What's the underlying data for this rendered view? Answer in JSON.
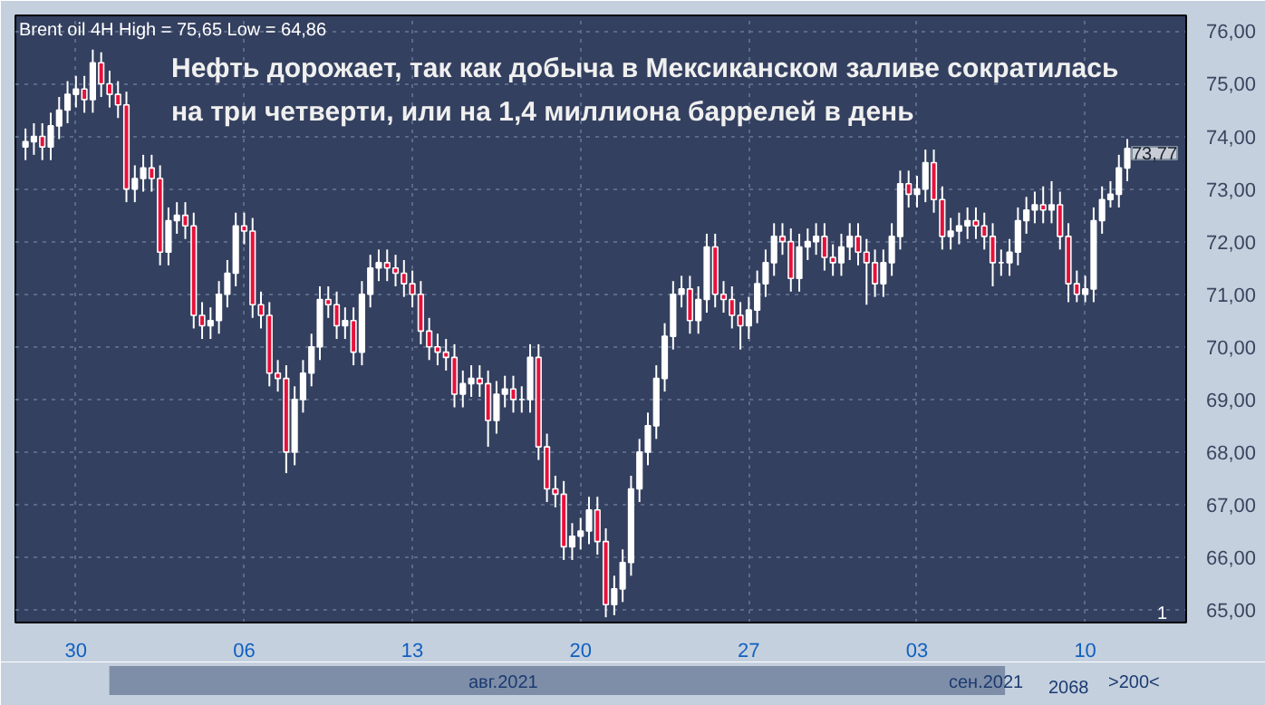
{
  "chart_data": {
    "type": "candlestick",
    "title": "Нефть дорожает, так как добыча в Мексиканском заливе сократилась на три четверти, или на 1,4 миллиона баррелей в день",
    "subtitle": "Brent oil 4H High = 75,65 Low = 64,86",
    "categories": [
      null,
      null,
      null,
      null,
      null,
      null,
      "30",
      null,
      null,
      null,
      null,
      null,
      null,
      null,
      null,
      null,
      null,
      null,
      null,
      null,
      null,
      null,
      null,
      null,
      null,
      null,
      "06",
      null,
      null,
      null,
      null,
      null,
      null,
      null,
      null,
      null,
      null,
      null,
      null,
      null,
      null,
      null,
      null,
      null,
      null,
      null,
      "13",
      null,
      null,
      null,
      null,
      null,
      null,
      null,
      null,
      null,
      null,
      null,
      null,
      null,
      null,
      null,
      null,
      null,
      null,
      null,
      "20",
      null,
      null,
      null,
      null,
      null,
      null,
      null,
      null,
      null,
      null,
      null,
      null,
      null,
      null,
      null,
      null,
      null,
      null,
      null,
      "27",
      null,
      null,
      null,
      null,
      null,
      null,
      null,
      null,
      null,
      null,
      null,
      null,
      null,
      null,
      null,
      null,
      null,
      null,
      null,
      "03",
      null,
      null,
      null,
      null,
      null,
      null,
      null,
      null,
      null,
      null,
      null,
      null,
      null,
      null,
      null,
      null,
      null,
      null,
      null,
      "10",
      null,
      null,
      null,
      null,
      null
    ],
    "ohlc": [
      [
        73.8,
        74.15,
        73.55,
        73.9
      ],
      [
        73.9,
        74.25,
        73.65,
        74.0
      ],
      [
        74.0,
        74.25,
        73.55,
        73.8
      ],
      [
        73.8,
        74.45,
        73.55,
        74.2
      ],
      [
        74.2,
        74.75,
        73.95,
        74.5
      ],
      [
        74.5,
        75.05,
        74.25,
        74.8
      ],
      [
        74.8,
        75.15,
        74.55,
        74.9
      ],
      [
        74.9,
        75.15,
        74.45,
        74.7
      ],
      [
        74.7,
        75.65,
        74.45,
        75.4
      ],
      [
        75.4,
        75.6,
        74.75,
        75.0
      ],
      [
        75.0,
        75.25,
        74.55,
        74.8
      ],
      [
        74.8,
        75.05,
        74.35,
        74.6
      ],
      [
        74.6,
        74.85,
        72.75,
        73.0
      ],
      [
        73.0,
        73.45,
        72.75,
        73.2
      ],
      [
        73.2,
        73.65,
        72.95,
        73.4
      ],
      [
        73.4,
        73.65,
        72.95,
        73.2
      ],
      [
        73.2,
        73.45,
        71.55,
        71.8
      ],
      [
        71.8,
        72.65,
        71.55,
        72.4
      ],
      [
        72.4,
        72.75,
        72.15,
        72.5
      ],
      [
        72.5,
        72.75,
        72.05,
        72.3
      ],
      [
        72.3,
        72.55,
        70.35,
        70.6
      ],
      [
        70.6,
        70.85,
        70.15,
        70.4
      ],
      [
        70.4,
        70.75,
        70.15,
        70.5
      ],
      [
        70.5,
        71.25,
        70.25,
        71.0
      ],
      [
        71.0,
        71.65,
        70.75,
        71.4
      ],
      [
        71.4,
        72.55,
        71.15,
        72.3
      ],
      [
        72.3,
        72.55,
        71.95,
        72.2
      ],
      [
        72.2,
        72.45,
        70.55,
        70.8
      ],
      [
        70.8,
        71.05,
        70.35,
        70.6
      ],
      [
        70.6,
        70.85,
        69.25,
        69.5
      ],
      [
        69.5,
        69.75,
        69.15,
        69.4
      ],
      [
        69.4,
        69.65,
        67.6,
        68.0
      ],
      [
        68.0,
        69.25,
        67.75,
        69.0
      ],
      [
        69.0,
        69.75,
        68.75,
        69.5
      ],
      [
        69.5,
        70.25,
        69.25,
        70.0
      ],
      [
        70.0,
        71.15,
        69.75,
        70.9
      ],
      [
        70.9,
        71.15,
        70.55,
        70.8
      ],
      [
        70.8,
        71.05,
        70.15,
        70.4
      ],
      [
        70.4,
        70.75,
        70.15,
        70.5
      ],
      [
        70.5,
        70.75,
        69.65,
        69.9
      ],
      [
        69.9,
        71.25,
        69.65,
        71.0
      ],
      [
        71.0,
        71.75,
        70.75,
        71.5
      ],
      [
        71.5,
        71.85,
        71.25,
        71.6
      ],
      [
        71.6,
        71.85,
        71.25,
        71.5
      ],
      [
        71.5,
        71.75,
        71.15,
        71.4
      ],
      [
        71.4,
        71.65,
        70.95,
        71.2
      ],
      [
        71.2,
        71.45,
        70.75,
        71.0
      ],
      [
        71.0,
        71.25,
        70.05,
        70.3
      ],
      [
        70.3,
        70.55,
        69.75,
        70.0
      ],
      [
        70.0,
        70.25,
        69.65,
        69.9
      ],
      [
        69.9,
        70.15,
        69.55,
        69.8
      ],
      [
        69.8,
        70.05,
        68.85,
        69.1
      ],
      [
        69.1,
        69.55,
        68.85,
        69.3
      ],
      [
        69.3,
        69.65,
        69.05,
        69.4
      ],
      [
        69.4,
        69.65,
        69.05,
        69.3
      ],
      [
        69.3,
        69.55,
        68.1,
        68.6
      ],
      [
        68.6,
        69.35,
        68.35,
        69.1
      ],
      [
        69.1,
        69.45,
        68.85,
        69.2
      ],
      [
        69.2,
        69.45,
        68.75,
        69.0
      ],
      [
        69.0,
        69.25,
        68.75,
        69.0
      ],
      [
        69.0,
        70.05,
        68.75,
        69.8
      ],
      [
        69.8,
        70.05,
        67.85,
        68.1
      ],
      [
        68.1,
        68.35,
        67.05,
        67.3
      ],
      [
        67.3,
        67.55,
        66.95,
        67.2
      ],
      [
        67.2,
        67.45,
        65.95,
        66.2
      ],
      [
        66.2,
        66.65,
        65.95,
        66.4
      ],
      [
        66.4,
        66.75,
        66.15,
        66.5
      ],
      [
        66.5,
        67.15,
        66.25,
        66.9
      ],
      [
        66.9,
        67.15,
        66.05,
        66.3
      ],
      [
        66.3,
        66.55,
        64.86,
        65.1
      ],
      [
        65.1,
        65.65,
        64.9,
        65.4
      ],
      [
        65.4,
        66.15,
        65.15,
        65.9
      ],
      [
        65.9,
        67.55,
        65.65,
        67.3
      ],
      [
        67.3,
        68.25,
        67.05,
        68.0
      ],
      [
        68.0,
        68.75,
        67.75,
        68.5
      ],
      [
        68.5,
        69.65,
        68.25,
        69.4
      ],
      [
        69.4,
        70.45,
        69.15,
        70.2
      ],
      [
        70.2,
        71.25,
        69.95,
        71.0
      ],
      [
        71.0,
        71.35,
        70.75,
        71.1
      ],
      [
        71.1,
        71.35,
        70.25,
        70.5
      ],
      [
        70.5,
        71.15,
        70.25,
        70.9
      ],
      [
        70.9,
        72.15,
        70.65,
        71.9
      ],
      [
        71.9,
        72.15,
        70.75,
        71.0
      ],
      [
        71.0,
        71.25,
        70.65,
        70.9
      ],
      [
        70.9,
        71.15,
        70.35,
        70.6
      ],
      [
        70.6,
        70.85,
        69.95,
        70.4
      ],
      [
        70.4,
        70.95,
        70.15,
        70.7
      ],
      [
        70.7,
        71.45,
        70.45,
        71.2
      ],
      [
        71.2,
        71.85,
        70.95,
        71.6
      ],
      [
        71.6,
        72.35,
        71.35,
        72.1
      ],
      [
        72.1,
        72.35,
        71.75,
        72.0
      ],
      [
        72.0,
        72.25,
        71.05,
        71.3
      ],
      [
        71.3,
        72.15,
        71.05,
        71.9
      ],
      [
        71.9,
        72.25,
        71.65,
        72.0
      ],
      [
        72.0,
        72.35,
        71.75,
        72.1
      ],
      [
        72.1,
        72.35,
        71.45,
        71.7
      ],
      [
        71.7,
        71.95,
        71.35,
        71.6
      ],
      [
        71.6,
        72.15,
        71.35,
        71.9
      ],
      [
        71.9,
        72.35,
        71.65,
        72.1
      ],
      [
        72.1,
        72.35,
        71.55,
        71.8
      ],
      [
        71.8,
        72.05,
        70.8,
        71.6
      ],
      [
        71.6,
        71.85,
        70.95,
        71.2
      ],
      [
        71.2,
        71.85,
        70.95,
        71.6
      ],
      [
        71.6,
        72.35,
        71.35,
        72.1
      ],
      [
        72.1,
        73.35,
        71.85,
        73.1
      ],
      [
        73.1,
        73.35,
        72.65,
        72.9
      ],
      [
        72.9,
        73.25,
        72.65,
        73.0
      ],
      [
        73.0,
        73.75,
        72.75,
        73.5
      ],
      [
        73.5,
        73.75,
        72.55,
        72.8
      ],
      [
        72.8,
        73.05,
        71.85,
        72.1
      ],
      [
        72.1,
        72.45,
        71.85,
        72.2
      ],
      [
        72.2,
        72.55,
        71.95,
        72.3
      ],
      [
        72.3,
        72.65,
        72.05,
        72.4
      ],
      [
        72.4,
        72.65,
        72.05,
        72.3
      ],
      [
        72.3,
        72.55,
        71.85,
        72.1
      ],
      [
        72.1,
        72.35,
        71.15,
        71.6
      ],
      [
        71.6,
        71.85,
        71.35,
        71.6
      ],
      [
        71.6,
        72.05,
        71.35,
        71.8
      ],
      [
        71.8,
        72.65,
        71.55,
        72.4
      ],
      [
        72.4,
        72.85,
        72.15,
        72.6
      ],
      [
        72.6,
        72.95,
        72.35,
        72.7
      ],
      [
        72.7,
        73.05,
        72.35,
        72.6
      ],
      [
        72.6,
        73.15,
        72.35,
        72.7
      ],
      [
        72.7,
        72.95,
        71.85,
        72.1
      ],
      [
        72.1,
        72.35,
        70.85,
        71.2
      ],
      [
        71.2,
        71.45,
        70.85,
        71.0
      ],
      [
        71.0,
        71.35,
        70.85,
        71.1
      ],
      [
        71.1,
        72.65,
        70.85,
        72.4
      ],
      [
        72.4,
        73.05,
        72.15,
        72.8
      ],
      [
        72.8,
        73.15,
        72.65,
        72.9
      ],
      [
        72.9,
        73.65,
        72.65,
        73.4
      ],
      [
        73.4,
        73.95,
        73.15,
        73.77
      ]
    ],
    "colors": [
      "#ffffff",
      "#ffffff",
      "#e8103a",
      "#ffffff",
      "#ffffff",
      "#ffffff",
      "#ffffff",
      "#e8103a",
      "#ffffff",
      "#e8103a",
      "#e8103a",
      "#e8103a",
      "#e8103a",
      "#ffffff",
      "#ffffff",
      "#e8103a",
      "#e8103a",
      "#ffffff",
      "#ffffff",
      "#e8103a",
      "#e8103a",
      "#e8103a",
      "#ffffff",
      "#ffffff",
      "#ffffff",
      "#ffffff",
      "#e8103a",
      "#e8103a",
      "#e8103a",
      "#e8103a",
      "#e8103a",
      "#e8103a",
      "#ffffff",
      "#ffffff",
      "#ffffff",
      "#ffffff",
      "#e8103a",
      "#e8103a",
      "#ffffff",
      "#e8103a",
      "#ffffff",
      "#ffffff",
      "#ffffff",
      "#e8103a",
      "#e8103a",
      "#e8103a",
      "#e8103a",
      "#e8103a",
      "#e8103a",
      "#e8103a",
      "#e8103a",
      "#e8103a",
      "#ffffff",
      "#ffffff",
      "#e8103a",
      "#e8103a",
      "#ffffff",
      "#ffffff",
      "#e8103a",
      "#ffffff",
      "#ffffff",
      "#e8103a",
      "#e8103a",
      "#e8103a",
      "#e8103a",
      "#ffffff",
      "#ffffff",
      "#ffffff",
      "#e8103a",
      "#e8103a",
      "#ffffff",
      "#ffffff",
      "#ffffff",
      "#ffffff",
      "#ffffff",
      "#ffffff",
      "#ffffff",
      "#ffffff",
      "#ffffff",
      "#e8103a",
      "#ffffff",
      "#ffffff",
      "#e8103a",
      "#e8103a",
      "#e8103a",
      "#e8103a",
      "#ffffff",
      "#ffffff",
      "#ffffff",
      "#ffffff",
      "#e8103a",
      "#e8103a",
      "#ffffff",
      "#ffffff",
      "#ffffff",
      "#e8103a",
      "#e8103a",
      "#ffffff",
      "#ffffff",
      "#e8103a",
      "#e8103a",
      "#e8103a",
      "#ffffff",
      "#ffffff",
      "#ffffff",
      "#e8103a",
      "#ffffff",
      "#ffffff",
      "#e8103a",
      "#e8103a",
      "#ffffff",
      "#ffffff",
      "#ffffff",
      "#e8103a",
      "#e8103a",
      "#e8103a",
      "#ffffff",
      "#ffffff",
      "#ffffff",
      "#ffffff",
      "#ffffff",
      "#e8103a",
      "#ffffff",
      "#e8103a",
      "#e8103a",
      "#e8103a",
      "#ffffff",
      "#ffffff",
      "#ffffff",
      "#ffffff",
      "#ffffff",
      "#ffffff"
    ],
    "ylim": [
      64.76,
      76.3
    ],
    "yticks": [
      {
        "value": 65,
        "label": "65,00"
      },
      {
        "value": 66,
        "label": "66,00"
      },
      {
        "value": 67,
        "label": "67,00"
      },
      {
        "value": 68,
        "label": "68,00"
      },
      {
        "value": 69,
        "label": "69,00"
      },
      {
        "value": 70,
        "label": "70,00"
      },
      {
        "value": 71,
        "label": "71,00"
      },
      {
        "value": 72,
        "label": "72,00"
      },
      {
        "value": 73,
        "label": "73,00"
      },
      {
        "value": 74,
        "label": "74,00"
      },
      {
        "value": 75,
        "label": "75,00"
      },
      {
        "value": 76,
        "label": "76,00"
      }
    ],
    "grid": true,
    "annotations": [
      "73,77",
      "авг.2021",
      "сен.2021",
      "2068",
      ">200<",
      "1"
    ]
  }
}
